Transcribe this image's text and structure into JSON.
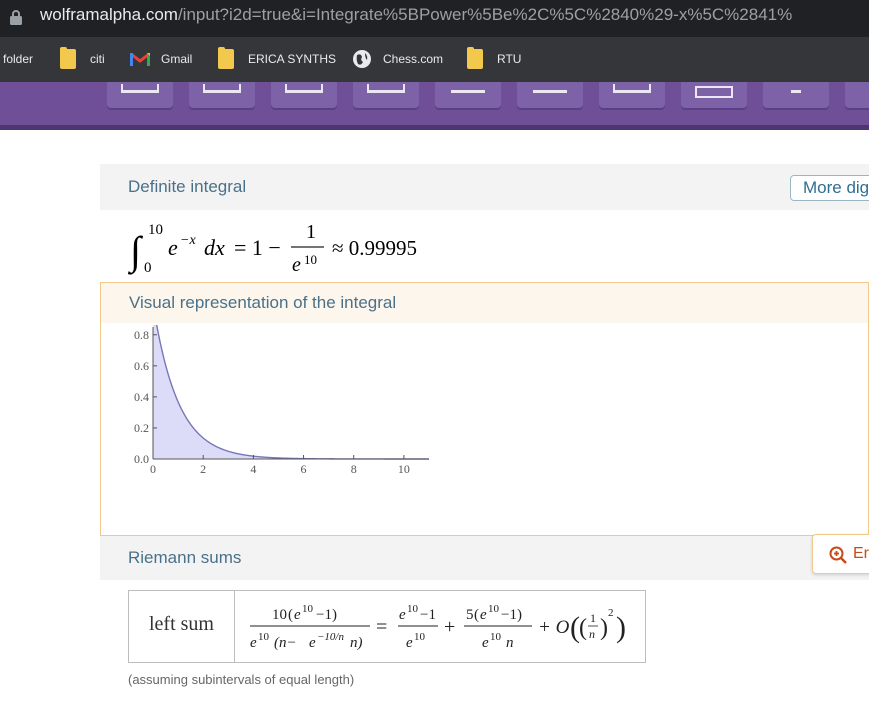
{
  "browser": {
    "url_host": "wolframalpha.com",
    "url_path": "/input?i2d=true&i=Integrate%5BPower%5Be%2C%5C%2840%29-x%5C%2841%",
    "bookmarks": [
      {
        "label": "folder",
        "kind": "text"
      },
      {
        "label": "citi",
        "kind": "folder"
      },
      {
        "label": "Gmail",
        "kind": "gmail"
      },
      {
        "label": "ERICA SYNTHS",
        "kind": "folder"
      },
      {
        "label": "Chess.com",
        "kind": "globe"
      },
      {
        "label": "RTU",
        "kind": "folder"
      }
    ]
  },
  "pods": {
    "definite": {
      "title": "Definite integral",
      "more_button": "More dig",
      "formula": {
        "upper": "10",
        "lower": "0",
        "integrand_base": "e",
        "integrand_exp": "−x",
        "dx": "dx",
        "eq": "= 1 −",
        "frac_num": "1",
        "frac_den_base": "e",
        "frac_den_exp": "10",
        "approx": "≈ 0.99995"
      }
    },
    "visual": {
      "title": "Visual representation of the integral"
    },
    "riemann": {
      "title": "Riemann sums",
      "enlarge_label": "Er",
      "row_label": "left sum",
      "assumption": "(assuming subintervals of equal length)",
      "expr": {
        "f1_num_coef": "10",
        "f1_num_open": "(",
        "f1_num_base": "e",
        "f1_num_exp": "10",
        "f1_num_rest": "−1)",
        "f1_den_base": "e",
        "f1_den_exp": "10",
        "f1_den_mid": "(n−",
        "f1_den_base2": "e",
        "f1_den_exp2": "−10/n",
        "f1_den_rest": "n)",
        "equals": "=",
        "f2_num_base": "e",
        "f2_num_exp": "10",
        "f2_num_rest": "−1",
        "f2_den_base": "e",
        "f2_den_exp": "10",
        "plus1": "+",
        "f3_num_coef": "5",
        "f3_num_open": "(",
        "f3_num_base": "e",
        "f3_num_exp": "10",
        "f3_num_rest": "−1)",
        "f3_den_base": "e",
        "f3_den_exp": "10",
        "f3_den_n": "n",
        "plus2": "+ O",
        "big_o_num": "1",
        "big_o_den": "n",
        "big_o_exp": "2"
      }
    }
  },
  "chart_data": {
    "type": "area",
    "function": "e^(-x)",
    "x": [
      0,
      0.5,
      1,
      1.5,
      2,
      2.5,
      3,
      3.5,
      4,
      5,
      6,
      7,
      8,
      9,
      10,
      11
    ],
    "y": [
      1.0,
      0.607,
      0.368,
      0.223,
      0.135,
      0.082,
      0.05,
      0.03,
      0.018,
      0.007,
      0.002,
      0.001,
      0.0003,
      0.0001,
      5e-05,
      2e-05
    ],
    "shade_range": [
      0,
      10
    ],
    "xlim": [
      0,
      11
    ],
    "ylim": [
      0,
      0.85
    ],
    "xticks": [
      "0",
      "2",
      "4",
      "6",
      "8",
      "10"
    ],
    "yticks": [
      "0.0",
      "0.2",
      "0.4",
      "0.6",
      "0.8"
    ],
    "colors": {
      "line": "#7777b8",
      "fill": "#dcdcf8"
    }
  }
}
